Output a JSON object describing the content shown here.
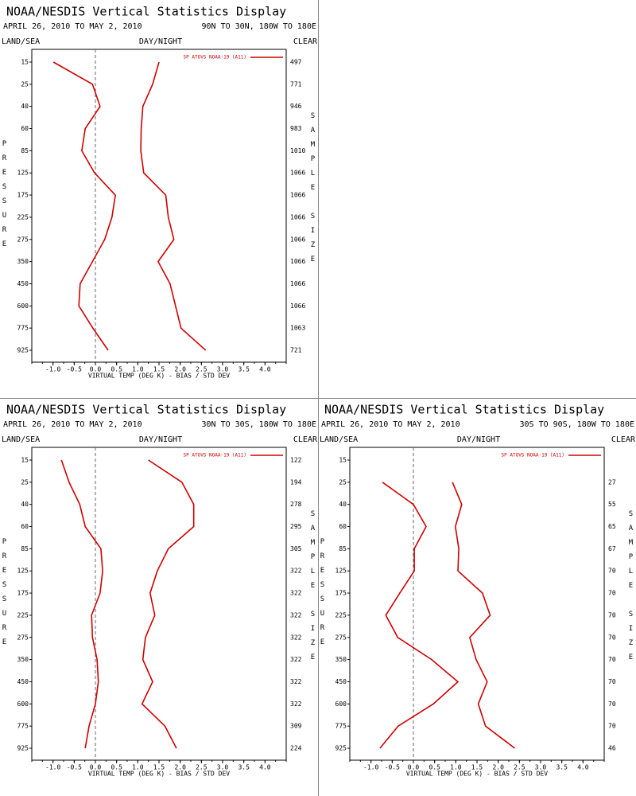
{
  "chart_data": [
    {
      "type": "line",
      "title": "NOAA/NESDIS Vertical Statistics Display",
      "subtitle": "APRIL 26, 2010 TO MAY 2, 2010",
      "region": "90N TO 30N, 180W TO 180E",
      "left_label": "LAND/SEA",
      "center_label": "DAY/NIGHT",
      "right_label": "CLEAR",
      "y_label": "PRESSURE",
      "y2_label": "SAMPLE SIZE",
      "x_label": "VIRTUAL TEMP (DEG K) - BIAS / STD DEV",
      "categories": [
        15,
        25,
        40,
        60,
        85,
        125,
        175,
        225,
        275,
        350,
        450,
        600,
        775,
        925
      ],
      "sample_sizes": [
        497,
        771,
        946,
        983,
        1010,
        1066,
        1066,
        1066,
        1066,
        1066,
        1066,
        1066,
        1063,
        721
      ],
      "series": [
        {
          "name": "SP ATOVS NOAA-19 (A11)",
          "color": "#d00000",
          "values": [
            -0.99,
            -0.07,
            0.11,
            -0.24,
            -0.32,
            -0.02,
            0.47,
            0.39,
            0.22,
            -0.07,
            -0.36,
            -0.39,
            -0.06,
            0.3
          ],
          "std_dev": [
            1.5,
            1.35,
            1.12,
            1.08,
            1.07,
            1.14,
            1.66,
            1.72,
            1.85,
            1.48,
            1.76,
            1.89,
            2.02,
            2.6
          ]
        }
      ],
      "xlim": [
        -1.5,
        4.5
      ],
      "xticks": [
        {
          "value": -1,
          "label": "-1.0"
        },
        -0.5,
        {
          "value": 0,
          "label": "0.0"
        },
        0.5,
        {
          "value": 1,
          "label": "1.0"
        },
        1.5,
        {
          "value": 2,
          "label": "2.0"
        },
        2.5,
        {
          "value": 3,
          "label": "3.0"
        },
        3.5,
        {
          "value": 4,
          "label": "4.0"
        }
      ],
      "zero_line": true
    },
    {
      "type": "line",
      "title": "NOAA/NESDIS Vertical Statistics Display",
      "subtitle": "APRIL 26, 2010 TO MAY 2, 2010",
      "region": "30N TO 30S, 180W TO 180E",
      "left_label": "LAND/SEA",
      "center_label": "DAY/NIGHT",
      "right_label": "CLEAR",
      "y_label": "PRESSURE",
      "y2_label": "SAMPLE SIZE",
      "x_label": "VIRTUAL TEMP (DEG K) - BIAS / STD DEV",
      "categories": [
        15,
        25,
        40,
        60,
        85,
        125,
        175,
        225,
        275,
        350,
        450,
        600,
        775,
        925
      ],
      "sample_sizes": [
        122,
        194,
        278,
        295,
        305,
        322,
        322,
        322,
        322,
        322,
        322,
        322,
        309,
        224
      ],
      "series": [
        {
          "name": "SP ATOVS NOAA-19 (A11)",
          "color": "#d00000",
          "values": [
            -0.8,
            -0.62,
            -0.37,
            -0.24,
            0.13,
            0.17,
            0.11,
            -0.09,
            -0.07,
            0.04,
            0.07,
            0,
            -0.15,
            -0.24
          ],
          "std_dev": [
            1.25,
            2.04,
            2.32,
            2.32,
            1.72,
            1.46,
            1.29,
            1.4,
            1.18,
            1.12,
            1.35,
            1.1,
            1.64,
            1.91
          ]
        }
      ],
      "xlim": [
        -1.5,
        4.5
      ],
      "xticks": [
        {
          "value": -1,
          "label": "-1.0"
        },
        -0.5,
        {
          "value": 0,
          "label": "0.0"
        },
        0.5,
        {
          "value": 1,
          "label": "1.0"
        },
        1.5,
        {
          "value": 2,
          "label": "2.0"
        },
        2.5,
        {
          "value": 3,
          "label": "3.0"
        },
        3.5,
        {
          "value": 4,
          "label": "4.0"
        }
      ],
      "zero_line": true
    },
    {
      "type": "line",
      "title": "NOAA/NESDIS Vertical Statistics Display",
      "subtitle": "APRIL 26, 2010 TO MAY 2, 2010",
      "region": "30S TO 90S, 180W TO 180E",
      "left_label": "LAND/SEA",
      "center_label": "DAY/NIGHT",
      "right_label": "CLEAR",
      "y_label": "PRESSURE",
      "y2_label": "SAMPLE SIZE",
      "x_label": "VIRTUAL TEMP (DEG K) - BIAS / STD DEV",
      "categories": [
        15,
        25,
        40,
        60,
        85,
        125,
        175,
        225,
        275,
        350,
        450,
        600,
        775,
        925
      ],
      "sample_sizes": [
        null,
        27,
        55,
        65,
        67,
        70,
        70,
        70,
        70,
        70,
        70,
        70,
        70,
        46
      ],
      "series": [
        {
          "name": "SP ATOVS NOAA-19 (A11)",
          "color": "#d00000",
          "values": [
            null,
            -0.73,
            0,
            0.3,
            0.02,
            0.02,
            -0.32,
            -0.65,
            -0.37,
            0.43,
            1.05,
            0.47,
            -0.36,
            -0.79
          ],
          "std_dev": [
            null,
            0.92,
            1.14,
            0.99,
            1.07,
            1.05,
            1.63,
            1.81,
            1.33,
            1.48,
            1.74,
            1.53,
            1.7,
            2.39
          ]
        }
      ],
      "xlim": [
        -1.5,
        4.5
      ],
      "xticks": [
        {
          "value": -1,
          "label": "-1.0"
        },
        -0.5,
        {
          "value": 0,
          "label": "0.0"
        },
        0.5,
        {
          "value": 1,
          "label": "1.0"
        },
        1.5,
        {
          "value": 2,
          "label": "2.0"
        },
        2.5,
        {
          "value": 3,
          "label": "3.0"
        },
        3.5,
        {
          "value": 4,
          "label": "4.0"
        }
      ],
      "zero_line": true
    }
  ]
}
